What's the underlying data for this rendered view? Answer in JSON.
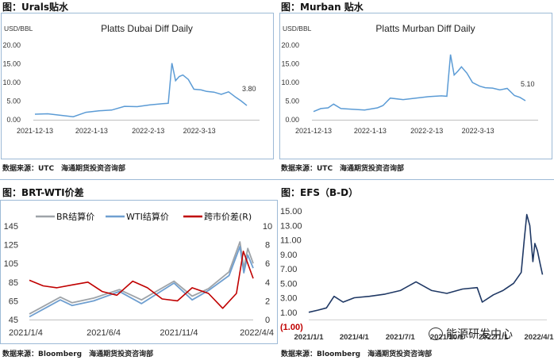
{
  "panels": {
    "urals": {
      "title": "图：Urals贴水",
      "source": "数据来源：UTC　海通期货投资咨询部"
    },
    "murban": {
      "title": "图：Murban 贴水",
      "source": "数据来源：UTC　海通期货投资咨询部"
    },
    "brt_wti": {
      "title": "图：BRT-WTI价差",
      "source": "数据来源：Bloomberg　海通期货投资咨询部"
    },
    "efs": {
      "title": "图：EFS（B-D）",
      "source": "数据来源：Bloomberg　海通期货投资咨询部"
    }
  },
  "watermark": {
    "icon": "wechat-icon",
    "text": "能源研发中心"
  },
  "chart_data": [
    {
      "id": "urals",
      "type": "line",
      "title": "Platts Dubai Diff Daily",
      "unit": "USD/BBL",
      "ylim": [
        0,
        20
      ],
      "y_ticks": [
        "0.00",
        "5.00",
        "10.00",
        "15.00",
        "20.00"
      ],
      "x_ticks": [
        "2021-12-13",
        "2022-1-13",
        "2022-2-13",
        "2022-3-13"
      ],
      "end_label": "3.80",
      "color": "#5b9bd5",
      "series": [
        {
          "x": [
            "2021-12-13",
            "2021-12-20",
            "2021-12-27",
            "2022-01-03",
            "2022-01-10",
            "2022-01-17",
            "2022-01-24",
            "2022-01-31",
            "2022-02-07",
            "2022-02-14",
            "2022-02-21",
            "2022-02-24",
            "2022-02-26",
            "2022-02-28",
            "2022-03-02",
            "2022-03-04",
            "2022-03-07",
            "2022-03-10",
            "2022-03-14",
            "2022-03-17",
            "2022-03-21",
            "2022-03-25",
            "2022-03-29",
            "2022-04-02",
            "2022-04-05",
            "2022-04-08"
          ],
          "values": [
            1.5,
            1.6,
            1.2,
            0.8,
            2.0,
            2.4,
            2.6,
            3.6,
            3.5,
            4.0,
            4.3,
            4.4,
            15.2,
            10.5,
            11.6,
            12.0,
            10.8,
            8.2,
            8.0,
            7.6,
            7.4,
            6.8,
            7.5,
            6.0,
            5.0,
            3.8
          ]
        }
      ]
    },
    {
      "id": "murban",
      "type": "line",
      "title": "Platts Murban Diff Daily",
      "unit": "USD/BBL",
      "ylim": [
        0,
        20
      ],
      "y_ticks": [
        "0.00",
        "5.00",
        "10.00",
        "15.00",
        "20.00"
      ],
      "x_ticks": [
        "2021-12-13",
        "2022-1-13",
        "2022-2-13",
        "2022-3-13"
      ],
      "end_label": "5.10",
      "color": "#5b9bd5",
      "series": [
        {
          "x": [
            "2021-12-13",
            "2021-12-17",
            "2021-12-21",
            "2021-12-24",
            "2021-12-28",
            "2022-01-03",
            "2022-01-10",
            "2022-01-17",
            "2022-01-20",
            "2022-01-24",
            "2022-01-31",
            "2022-02-07",
            "2022-02-14",
            "2022-02-21",
            "2022-02-24",
            "2022-02-26",
            "2022-02-28",
            "2022-03-02",
            "2022-03-04",
            "2022-03-07",
            "2022-03-10",
            "2022-03-14",
            "2022-03-17",
            "2022-03-21",
            "2022-03-25",
            "2022-03-29",
            "2022-04-02",
            "2022-04-05",
            "2022-04-08"
          ],
          "values": [
            2.2,
            3.0,
            3.2,
            4.2,
            3.0,
            2.8,
            2.6,
            3.2,
            3.8,
            5.8,
            5.4,
            5.8,
            6.2,
            6.4,
            6.3,
            17.5,
            12.0,
            13.0,
            14.2,
            12.5,
            10.0,
            9.0,
            8.6,
            8.5,
            8.0,
            8.4,
            6.5,
            6.0,
            5.1
          ]
        }
      ]
    },
    {
      "id": "brt_wti",
      "type": "line",
      "title": "",
      "ylim_left": [
        45,
        145
      ],
      "ylim_right": [
        0,
        10
      ],
      "y_ticks_left": [
        "45",
        "65",
        "85",
        "105",
        "125",
        "145"
      ],
      "y_ticks_right": [
        "0",
        "2",
        "4",
        "6",
        "8",
        "10"
      ],
      "x_ticks": [
        "2021/1/4",
        "2021/6/4",
        "2021/11/4",
        "2022/4/4"
      ],
      "series": [
        {
          "name": "BR结算价",
          "color": "#9ea3a8",
          "axis": "left",
          "x": [
            "2021-01-04",
            "2021-02-15",
            "2021-03-08",
            "2021-04-01",
            "2021-05-15",
            "2021-07-06",
            "2021-08-20",
            "2021-10-25",
            "2021-12-01",
            "2022-01-03",
            "2022-02-14",
            "2022-03-08",
            "2022-03-16",
            "2022-03-24",
            "2022-04-04"
          ],
          "values": [
            51,
            63,
            69,
            63,
            68,
            77,
            66,
            86,
            70,
            78,
            96,
            128,
            100,
            121,
            105
          ]
        },
        {
          "name": "WTI结算价",
          "color": "#6f9fd0",
          "axis": "left",
          "x": [
            "2021-01-04",
            "2021-02-15",
            "2021-03-08",
            "2021-04-01",
            "2021-05-15",
            "2021-07-06",
            "2021-08-20",
            "2021-10-25",
            "2021-12-01",
            "2022-01-03",
            "2022-02-14",
            "2022-03-08",
            "2022-03-16",
            "2022-03-24",
            "2022-04-04"
          ],
          "values": [
            48,
            60,
            66,
            60,
            65,
            75,
            62,
            84,
            66,
            76,
            92,
            123,
            95,
            114,
            100
          ]
        },
        {
          "name": "跨市价差(R)",
          "color": "#c00000",
          "axis": "right",
          "x": [
            "2021-01-04",
            "2021-02-01",
            "2021-03-01",
            "2021-04-01",
            "2021-05-03",
            "2021-06-01",
            "2021-07-01",
            "2021-08-02",
            "2021-09-01",
            "2021-10-01",
            "2021-11-01",
            "2021-12-01",
            "2022-01-03",
            "2022-02-01",
            "2022-03-01",
            "2022-03-15",
            "2022-04-04"
          ],
          "values": [
            4.2,
            3.6,
            3.4,
            3.7,
            4.0,
            3.0,
            2.6,
            4.1,
            3.4,
            2.2,
            2.0,
            3.4,
            2.8,
            1.2,
            2.8,
            7.3,
            4.4
          ]
        }
      ]
    },
    {
      "id": "efs",
      "type": "line",
      "title": "",
      "ylim": [
        -1,
        15
      ],
      "y_ticks": [
        "(1.00)",
        "1.00",
        "3.00",
        "5.00",
        "7.00",
        "9.00",
        "11.00",
        "13.00",
        "15.00"
      ],
      "x_ticks": [
        "2021/1/1",
        "2021/4/1",
        "2021/7/1",
        "2021/10/1",
        "2022/1/1",
        "2022/4/1"
      ],
      "color": "#1f3864",
      "series": [
        {
          "x": [
            "2021-01-01",
            "2021-01-20",
            "2021-02-05",
            "2021-02-20",
            "2021-03-10",
            "2021-04-01",
            "2021-05-01",
            "2021-06-01",
            "2021-07-01",
            "2021-08-01",
            "2021-09-01",
            "2021-10-01",
            "2021-11-01",
            "2021-11-30",
            "2021-12-10",
            "2022-01-01",
            "2022-01-20",
            "2022-02-10",
            "2022-02-25",
            "2022-03-03",
            "2022-03-08",
            "2022-03-14",
            "2022-03-20",
            "2022-03-24",
            "2022-03-29",
            "2022-04-04",
            "2022-04-08"
          ],
          "values": [
            1.0,
            1.3,
            1.6,
            3.2,
            2.4,
            3.0,
            3.2,
            3.5,
            4.0,
            5.2,
            4.0,
            3.6,
            4.2,
            4.4,
            2.4,
            3.4,
            4.0,
            5.0,
            6.5,
            11.0,
            14.5,
            13.0,
            8.0,
            10.5,
            9.5,
            7.5,
            6.2
          ]
        }
      ]
    }
  ]
}
